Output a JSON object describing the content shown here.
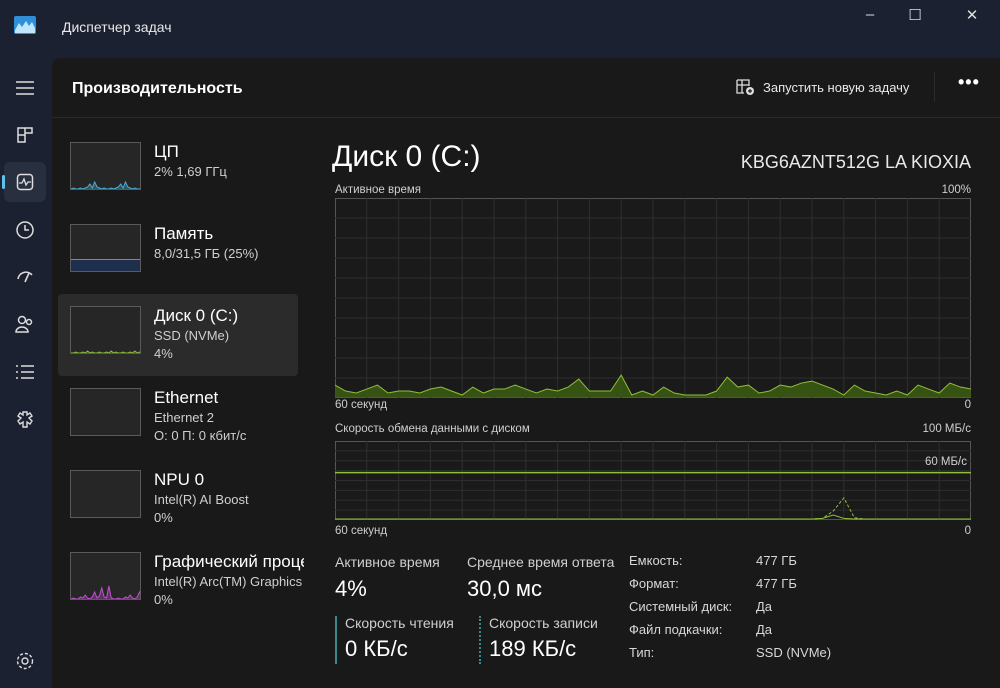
{
  "window": {
    "title": "Диспетчер задач",
    "minimize": "–",
    "maximize": "☐",
    "close": "✕"
  },
  "nav": {
    "items": [
      "menu-icon",
      "processes-icon",
      "performance-icon",
      "app-history-icon",
      "startup-apps-icon",
      "users-icon",
      "details-icon",
      "services-icon",
      "settings-icon"
    ],
    "selected": "performance-icon"
  },
  "header": {
    "title": "Производительность",
    "run_task": "Запустить новую задачу",
    "more": "•••"
  },
  "sidebar": {
    "items": [
      {
        "name": "ЦП",
        "line2": "2% 1,69 ГГц",
        "line3": "",
        "color": "#4ab0d8"
      },
      {
        "name": "Память",
        "line2": "8,0/31,5 ГБ (25%)",
        "line3": "",
        "color": "#5c8ad8"
      },
      {
        "name": "Диск 0 (C:)",
        "line2": "SSD (NVMe)",
        "line3": "4%",
        "color": "#8fbf3a",
        "selected": true
      },
      {
        "name": "Ethernet",
        "line2": "Ethernet 2",
        "line3": "О: 0 П: 0 кбит/с",
        "color": "#c08050"
      },
      {
        "name": "NPU 0",
        "line2": "Intel(R) AI Boost",
        "line3": "0%",
        "color": "#4ab0d8"
      },
      {
        "name": "Графический процессор",
        "line2": "Intel(R) Arc(TM) Graphics",
        "line3": "0%",
        "color": "#c050d0"
      }
    ]
  },
  "detail": {
    "title": "Диск 0 (C:)",
    "model": "KBG6AZNT512G LA KIOXIA",
    "stats": {
      "active_label": "Активное время",
      "active": "4%",
      "resp_label": "Среднее время ответа",
      "resp": "30,0 мс",
      "read_label": "Скорость чтения",
      "read": "0 КБ/с",
      "write_label": "Скорость записи",
      "write": "189 КБ/с"
    },
    "props": [
      [
        "Емкость:",
        "477 ГБ"
      ],
      [
        "Формат:",
        "477 ГБ"
      ],
      [
        "Системный диск:",
        "Да"
      ],
      [
        "Файл подкачки:",
        "Да"
      ],
      [
        "Тип:",
        "SSD (NVMe)"
      ]
    ]
  },
  "chart_data": [
    {
      "type": "area",
      "title": "Активное время",
      "ymax_label": "100%",
      "x_left_label": "60 секунд",
      "x_right_label": "0",
      "ylim": [
        0,
        100
      ],
      "xlim": [
        60,
        0
      ],
      "color": "#8fbf3a",
      "values": [
        6,
        3,
        2,
        4,
        6,
        2,
        3,
        3,
        2,
        4,
        5,
        3,
        1,
        5,
        2,
        4,
        4,
        6,
        4,
        2,
        4,
        3,
        5,
        9,
        3,
        3,
        3,
        11,
        1,
        3,
        1,
        5,
        2,
        1,
        1,
        1,
        3,
        10,
        5,
        6,
        2,
        3,
        6,
        5,
        7,
        8,
        6,
        4,
        1,
        6,
        3,
        2,
        1,
        3,
        1,
        6,
        4,
        2,
        7,
        5,
        4
      ]
    },
    {
      "type": "line",
      "title": "Скорость обмена данными с диском",
      "ymax_label": "100 МБ/с",
      "scale_label": "60 МБ/с",
      "scale_value": 60,
      "x_left_label": "60 секунд",
      "x_right_label": "0",
      "ylim": [
        0,
        100
      ],
      "xlim": [
        60,
        0
      ],
      "color": "#8fbf3a",
      "series": [
        {
          "style": "solid",
          "values": [
            0,
            0,
            0,
            0,
            0,
            0,
            0,
            0,
            0,
            0,
            0,
            0,
            0,
            0,
            0,
            0,
            0,
            0,
            0,
            0,
            0,
            0,
            0,
            0,
            0,
            0,
            0,
            0,
            0,
            0,
            0,
            0,
            0,
            0,
            0,
            0,
            0,
            0,
            0,
            0,
            0,
            0,
            0,
            0,
            0,
            0,
            0.5,
            3,
            0.5,
            0,
            0,
            0,
            0,
            0,
            0,
            0,
            0,
            0,
            0,
            0,
            0
          ]
        },
        {
          "style": "dashed",
          "values": [
            0,
            0,
            0,
            0,
            0,
            0,
            0,
            0,
            0,
            0,
            0,
            0,
            0,
            0,
            0,
            0,
            0,
            0,
            0,
            0,
            0,
            0,
            0,
            0,
            0,
            0,
            0,
            0,
            0,
            0,
            0,
            0,
            0,
            0,
            0,
            0,
            0,
            0,
            0,
            0,
            0,
            0,
            0,
            0,
            0,
            0,
            0.5,
            6,
            16,
            1,
            0,
            0,
            0,
            0,
            0,
            0,
            0,
            0,
            0,
            0,
            0
          ]
        }
      ]
    }
  ]
}
